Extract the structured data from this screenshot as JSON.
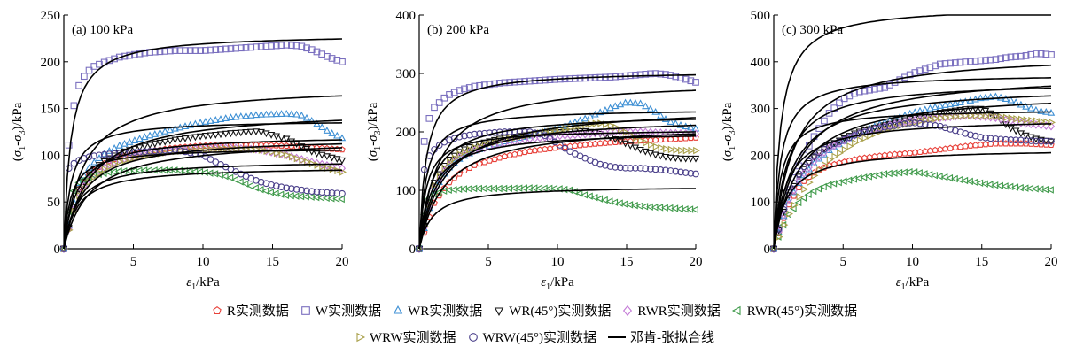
{
  "chart_data": [
    {
      "type": "line",
      "title": "(a) 100 kPa",
      "xlabel": "ε1/kPa",
      "ylabel": "(σ1-σ3)/kPa",
      "xlim": [
        0,
        20
      ],
      "ylim": [
        0,
        250
      ],
      "xticks": [
        0,
        5,
        10,
        15,
        20
      ],
      "yticks": [
        0,
        50,
        100,
        150,
        200,
        250
      ],
      "series": [
        {
          "name": "R实测数据",
          "x": [
            0,
            1,
            2,
            3,
            4,
            6,
            8,
            10,
            12,
            14,
            16,
            18,
            20
          ],
          "y": [
            0,
            62,
            82,
            92,
            98,
            104,
            108,
            110,
            111,
            111,
            110,
            108,
            106
          ]
        },
        {
          "name": "W实测数据",
          "x": [
            0,
            0.4,
            0.8,
            1.2,
            2,
            3,
            4,
            6,
            8,
            10,
            12,
            14,
            16,
            17,
            18,
            19,
            20
          ],
          "y": [
            0,
            122,
            160,
            180,
            194,
            200,
            205,
            210,
            212,
            212,
            214,
            216,
            218,
            217,
            212,
            205,
            200
          ]
        },
        {
          "name": "WR实测数据",
          "x": [
            0,
            1,
            2,
            3,
            4,
            6,
            8,
            10,
            12,
            14,
            16,
            17,
            18,
            19,
            20
          ],
          "y": [
            0,
            68,
            90,
            102,
            110,
            120,
            128,
            135,
            140,
            143,
            144,
            143,
            135,
            125,
            118
          ]
        },
        {
          "name": "WR(45°)实测数据",
          "x": [
            0,
            1,
            2,
            3,
            4,
            6,
            8,
            10,
            12,
            14,
            16,
            18,
            20
          ],
          "y": [
            0,
            62,
            84,
            95,
            103,
            111,
            117,
            121,
            124,
            126,
            118,
            103,
            95
          ]
        },
        {
          "name": "RWR实测数据",
          "x": [
            0,
            1,
            2,
            3,
            4,
            6,
            8,
            10,
            12,
            14,
            16,
            18,
            20
          ],
          "y": [
            0,
            58,
            78,
            88,
            95,
            101,
            105,
            107,
            108,
            106,
            100,
            92,
            86
          ]
        },
        {
          "name": "RWR(45°)实测数据",
          "x": [
            0,
            0.5,
            1,
            2,
            3,
            4,
            6,
            8,
            10,
            11,
            12,
            13,
            14,
            15,
            16,
            17,
            18,
            19,
            20
          ],
          "y": [
            0,
            55,
            70,
            78,
            81,
            83,
            84,
            84,
            82,
            80,
            76,
            70,
            64,
            60,
            57,
            56,
            55,
            54,
            53
          ]
        },
        {
          "name": "WRW实测数据",
          "x": [
            0,
            1,
            2,
            3,
            4,
            6,
            8,
            10,
            12,
            14,
            16,
            18,
            20
          ],
          "y": [
            0,
            55,
            75,
            86,
            93,
            100,
            104,
            106,
            107,
            106,
            100,
            90,
            82
          ]
        },
        {
          "name": "WRW(45°)实测数据",
          "x": [
            0,
            0.3,
            0.6,
            1,
            1.5,
            2,
            3,
            4,
            6,
            8,
            10,
            11,
            12,
            13,
            14,
            15,
            16,
            17,
            18,
            19,
            20
          ],
          "y": [
            0,
            85,
            90,
            94,
            97,
            99,
            101,
            102,
            104,
            106,
            100,
            92,
            85,
            78,
            72,
            68,
            65,
            63,
            61,
            60,
            59
          ]
        }
      ],
      "fit_asymptotes": [
        230,
        95,
        175,
        150,
        138,
        122,
        120,
        118,
        108,
        88
      ]
    },
    {
      "type": "line",
      "title": "(b) 200 kPa",
      "xlabel": "ε1/kPa",
      "ylabel": "(σ1-σ3)/kPa",
      "xlim": [
        0,
        20
      ],
      "ylim": [
        0,
        400
      ],
      "xticks": [
        0,
        5,
        10,
        15,
        20
      ],
      "yticks": [
        0,
        100,
        200,
        300,
        400
      ],
      "series": [
        {
          "name": "R实测数据",
          "x": [
            0,
            1,
            2,
            3,
            4,
            6,
            8,
            10,
            12,
            14,
            16,
            18,
            20
          ],
          "y": [
            0,
            75,
            110,
            130,
            143,
            157,
            167,
            173,
            178,
            182,
            185,
            187,
            190
          ]
        },
        {
          "name": "W实测数据",
          "x": [
            0,
            0.3,
            0.6,
            1,
            2,
            3,
            4,
            6,
            8,
            10,
            12,
            14,
            16,
            17,
            18,
            19,
            20
          ],
          "y": [
            0,
            175,
            215,
            240,
            262,
            272,
            278,
            284,
            287,
            290,
            292,
            294,
            298,
            300,
            298,
            292,
            285
          ]
        },
        {
          "name": "WR实测数据",
          "x": [
            0,
            1,
            2,
            3,
            4,
            6,
            8,
            10,
            12,
            14,
            15,
            16,
            17,
            18,
            19,
            20
          ],
          "y": [
            0,
            95,
            135,
            155,
            167,
            182,
            193,
            205,
            222,
            242,
            250,
            248,
            235,
            218,
            210,
            205
          ]
        },
        {
          "name": "WR(45°)实测数据",
          "x": [
            0,
            1,
            2,
            3,
            4,
            6,
            8,
            10,
            12,
            13,
            14,
            15,
            16,
            17,
            18,
            19,
            20
          ],
          "y": [
            0,
            110,
            150,
            168,
            178,
            190,
            196,
            200,
            202,
            198,
            190,
            180,
            170,
            162,
            157,
            155,
            155
          ]
        },
        {
          "name": "RWR实测数据",
          "x": [
            0,
            1,
            2,
            3,
            4,
            6,
            8,
            10,
            12,
            14,
            16,
            18,
            20
          ],
          "y": [
            0,
            100,
            140,
            158,
            168,
            180,
            188,
            193,
            196,
            200,
            200,
            198,
            197
          ]
        },
        {
          "name": "RWR(45°)实测数据",
          "x": [
            0,
            0.5,
            1,
            2,
            3,
            4,
            6,
            8,
            10,
            11,
            12,
            13,
            14,
            15,
            16,
            17,
            18,
            19,
            20
          ],
          "y": [
            0,
            80,
            93,
            100,
            102,
            103,
            103,
            104,
            103,
            100,
            92,
            86,
            80,
            76,
            73,
            71,
            70,
            68,
            67
          ]
        },
        {
          "name": "WRW实测数据",
          "x": [
            0,
            1,
            2,
            3,
            4,
            6,
            8,
            10,
            12,
            13,
            14,
            15,
            16,
            17,
            18,
            19,
            20
          ],
          "y": [
            0,
            105,
            145,
            163,
            173,
            186,
            195,
            203,
            212,
            215,
            210,
            198,
            185,
            175,
            170,
            168,
            168
          ]
        },
        {
          "name": "WRW(45°)实测数据",
          "x": [
            0,
            0.3,
            0.6,
            1,
            1.5,
            2,
            3,
            4,
            6,
            8,
            9,
            10,
            11,
            12,
            13,
            14,
            15,
            16,
            17,
            18,
            19,
            20
          ],
          "y": [
            0,
            130,
            155,
            168,
            178,
            185,
            192,
            196,
            200,
            200,
            195,
            180,
            165,
            155,
            145,
            140,
            138,
            138,
            136,
            134,
            131,
            128
          ]
        }
      ],
      "fit_asymptotes": [
        305,
        108,
        290,
        245,
        240,
        232,
        226,
        215,
        205,
        202
      ]
    },
    {
      "type": "line",
      "title": "(c) 300 kPa",
      "xlabel": "ε1/kPa",
      "ylabel": "(σ1-σ3)/kPa",
      "xlim": [
        0,
        20
      ],
      "ylim": [
        0,
        500
      ],
      "xticks": [
        0,
        5,
        10,
        15,
        20
      ],
      "yticks": [
        0,
        100,
        200,
        300,
        400,
        500
      ],
      "series": [
        {
          "name": "R实测数据",
          "x": [
            0,
            1,
            2,
            3,
            4,
            6,
            8,
            10,
            12,
            14,
            16,
            18,
            20
          ],
          "y": [
            0,
            90,
            140,
            165,
            178,
            192,
            200,
            205,
            212,
            220,
            225,
            225,
            222
          ]
        },
        {
          "name": "W实测数据",
          "x": [
            0,
            1,
            2,
            3,
            4,
            5,
            6,
            7,
            8,
            10,
            12,
            14,
            16,
            17,
            18,
            19,
            20
          ],
          "y": [
            0,
            120,
            190,
            245,
            290,
            320,
            335,
            340,
            345,
            375,
            395,
            400,
            405,
            410,
            412,
            418,
            415
          ]
        },
        {
          "name": "WR实测数据",
          "x": [
            0,
            1,
            2,
            3,
            4,
            6,
            8,
            10,
            12,
            14,
            15,
            16,
            17,
            18,
            19,
            20
          ],
          "y": [
            0,
            95,
            150,
            185,
            210,
            245,
            270,
            290,
            305,
            315,
            322,
            325,
            318,
            305,
            295,
            290
          ]
        },
        {
          "name": "WR(45°)实测数据",
          "x": [
            0,
            1,
            2,
            3,
            4,
            6,
            8,
            10,
            12,
            14,
            15,
            16,
            17,
            18,
            19,
            20
          ],
          "y": [
            0,
            110,
            165,
            200,
            222,
            250,
            265,
            280,
            292,
            300,
            300,
            285,
            260,
            245,
            235,
            230
          ]
        },
        {
          "name": "RWR实测数据",
          "x": [
            0,
            1,
            2,
            3,
            4,
            6,
            8,
            10,
            12,
            14,
            16,
            18,
            20
          ],
          "y": [
            0,
            100,
            155,
            190,
            215,
            245,
            262,
            275,
            280,
            285,
            280,
            268,
            262
          ]
        },
        {
          "name": "RWR(45°)实测数据",
          "x": [
            0,
            1,
            2,
            3,
            4,
            6,
            8,
            10,
            11,
            12,
            13,
            14,
            15,
            16,
            17,
            18,
            19,
            20
          ],
          "y": [
            0,
            70,
            105,
            125,
            137,
            150,
            160,
            165,
            160,
            155,
            150,
            145,
            140,
            136,
            133,
            130,
            128,
            126
          ]
        },
        {
          "name": "WRW实测数据",
          "x": [
            0,
            1,
            2,
            3,
            4,
            6,
            8,
            10,
            12,
            14,
            16,
            18,
            20
          ],
          "y": [
            0,
            70,
            120,
            160,
            190,
            230,
            255,
            270,
            280,
            285,
            283,
            276,
            270
          ]
        },
        {
          "name": "WRW(45°)实测数据",
          "x": [
            0,
            1,
            2,
            3,
            4,
            6,
            8,
            10,
            12,
            14,
            15,
            16,
            17,
            18,
            19,
            20
          ],
          "y": [
            0,
            115,
            170,
            200,
            220,
            245,
            260,
            270,
            262,
            245,
            238,
            235,
            233,
            232,
            230,
            230
          ]
        }
      ],
      "fit_asymptotes": [
        520,
        215,
        420,
        380,
        375,
        360,
        350,
        340,
        300,
        280
      ]
    }
  ],
  "legend": {
    "row1": [
      {
        "symbol": "pentagon",
        "color": "#e8413a",
        "label": "R实测数据"
      },
      {
        "symbol": "square",
        "color": "#7a6fbf",
        "label": "W实测数据"
      },
      {
        "symbol": "triangle-up",
        "color": "#3d8fd4",
        "label": "WR实测数据"
      },
      {
        "symbol": "triangle-down",
        "color": "#111111",
        "label": "WR(45°)实测数据"
      },
      {
        "symbol": "diamond",
        "color": "#c37ad6",
        "label": "RWR实测数据"
      },
      {
        "symbol": "triangle-left",
        "color": "#3f9a4a",
        "label": "RWR(45°)实测数据"
      }
    ],
    "row2": [
      {
        "symbol": "triangle-right",
        "color": "#a9a04a",
        "label": "WRW实测数据"
      },
      {
        "symbol": "circle",
        "color": "#4a3f8a",
        "label": "WRW(45°)实测数据"
      },
      {
        "symbol": "line",
        "color": "#000000",
        "label": "邓肯-张拟合线"
      }
    ]
  },
  "colors": {
    "R": "#e8413a",
    "W": "#7a6fbf",
    "WR": "#3d8fd4",
    "WR45": "#111111",
    "RWR": "#c37ad6",
    "RWR45": "#3f9a4a",
    "WRW": "#a9a04a",
    "WRW45": "#4a3f8a",
    "fit": "#000000"
  }
}
